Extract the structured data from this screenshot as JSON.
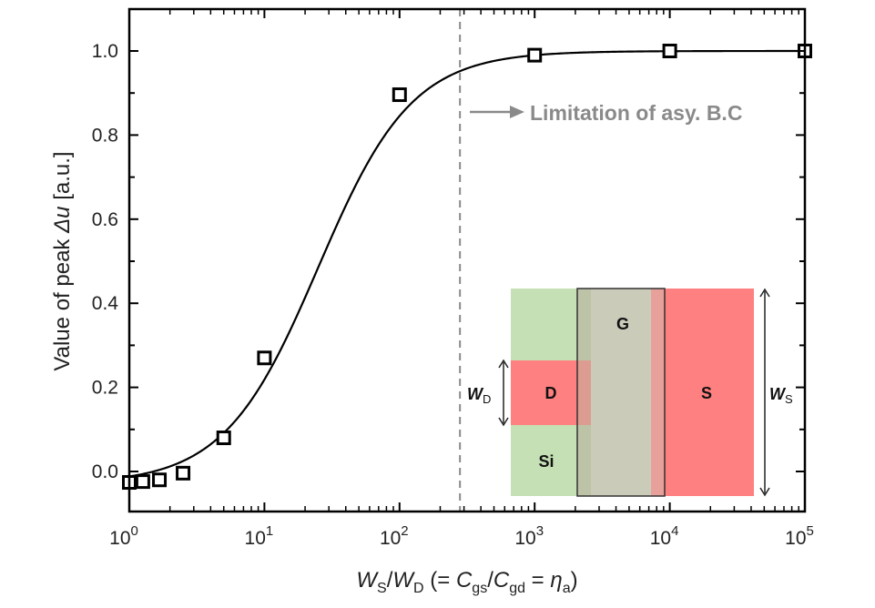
{
  "chart_data": {
    "type": "scatter",
    "title": "",
    "xlabel": {
      "parts": [
        {
          "text": "W",
          "italic": true
        },
        {
          "text": "S",
          "sub": true
        },
        {
          "text": "/",
          "italic": false
        },
        {
          "text": "W",
          "italic": true
        },
        {
          "text": "D",
          "sub": true
        },
        {
          "text": " (= ",
          "italic": false
        },
        {
          "text": "C",
          "italic": true
        },
        {
          "text": "gs",
          "sub": true
        },
        {
          "text": "/",
          "italic": false
        },
        {
          "text": "C",
          "italic": true
        },
        {
          "text": "gd",
          "sub": true
        },
        {
          "text": " = ",
          "italic": false
        },
        {
          "text": "η",
          "italic": true
        },
        {
          "text": "a",
          "sub": true
        },
        {
          "text": ")",
          "italic": false
        }
      ]
    },
    "ylabel": {
      "parts": [
        {
          "text": "Value of peak ",
          "italic": false
        },
        {
          "text": "Δu",
          "italic": true
        },
        {
          "text": " [a.u.]",
          "italic": false
        }
      ]
    },
    "xscale": "log",
    "xlim": [
      1,
      100000
    ],
    "ylim": [
      -0.09,
      1.1
    ],
    "grid": false,
    "x_ticks": [
      {
        "value": 1,
        "base": "10",
        "exp": "0"
      },
      {
        "value": 10,
        "base": "10",
        "exp": "1"
      },
      {
        "value": 100,
        "base": "10",
        "exp": "2"
      },
      {
        "value": 1000,
        "base": "10",
        "exp": "3"
      },
      {
        "value": 10000,
        "base": "10",
        "exp": "4"
      },
      {
        "value": 100000,
        "base": "10",
        "exp": "5"
      }
    ],
    "y_ticks": [
      {
        "value": 0.0,
        "label": "0.0"
      },
      {
        "value": 0.2,
        "label": "0.2"
      },
      {
        "value": 0.4,
        "label": "0.4"
      },
      {
        "value": 0.6,
        "label": "0.6"
      },
      {
        "value": 0.8,
        "label": "0.8"
      },
      {
        "value": 1.0,
        "label": "1.0"
      }
    ],
    "series": [
      {
        "name": "data",
        "marker": "open-square",
        "color": "#000000",
        "x": [
          1,
          1.26,
          1.67,
          2.5,
          5,
          10,
          100,
          1000,
          10000,
          100000
        ],
        "y": [
          -0.026,
          -0.024,
          -0.02,
          -0.004,
          0.08,
          0.27,
          0.896,
          0.99,
          1.0,
          1.0
        ]
      },
      {
        "name": "fit",
        "style": "line",
        "color": "#000000",
        "model": "sigmoid-log",
        "params": {
          "x0": 25,
          "n": 1.25,
          "ymin": -0.03,
          "ymax": 1.0
        }
      }
    ],
    "annotations": [
      {
        "type": "vline",
        "x": 280,
        "style": "dashed",
        "color": "#8a8a8a"
      },
      {
        "type": "arrow-text",
        "text": "Limitation of asy. B.C",
        "color": "#8a8a8a",
        "direction": "right"
      }
    ],
    "inset": {
      "description": "device schematic",
      "regions": [
        {
          "label": "Si",
          "color": "#c5e0b4"
        },
        {
          "label": "D",
          "color": "#ff8080"
        },
        {
          "label": "G",
          "color": "#b9b9a3"
        },
        {
          "label": "S",
          "color": "#ff8080"
        }
      ],
      "dimension_labels": [
        {
          "main": "W",
          "sub": "D"
        },
        {
          "main": "W",
          "sub": "S"
        }
      ]
    }
  }
}
